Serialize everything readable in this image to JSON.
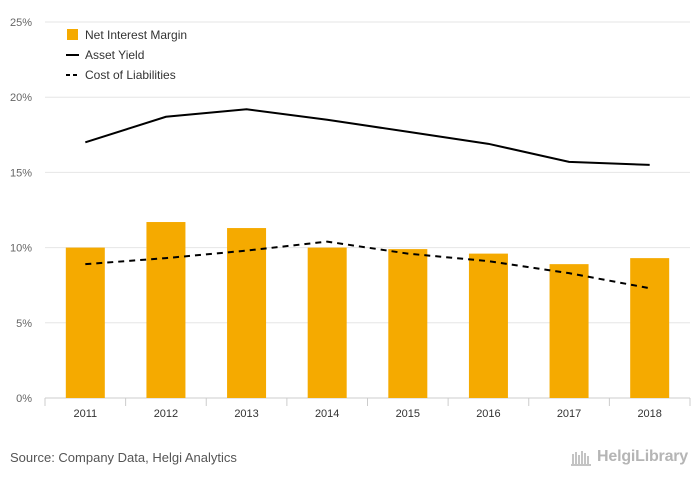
{
  "chart_data": {
    "type": "bar",
    "categories": [
      "2011",
      "2012",
      "2013",
      "2014",
      "2015",
      "2016",
      "2017",
      "2018"
    ],
    "series": [
      {
        "name": "Net Interest Margin",
        "kind": "bar",
        "color": "#f5aa00",
        "values": [
          10.0,
          11.7,
          11.3,
          10.0,
          9.9,
          9.6,
          8.9,
          9.3
        ]
      },
      {
        "name": "Asset Yield",
        "kind": "line",
        "color": "#000000",
        "dash": "solid",
        "values": [
          17.0,
          18.7,
          19.2,
          18.5,
          17.7,
          16.9,
          15.7,
          15.5
        ]
      },
      {
        "name": "Cost of Liabilities",
        "kind": "line",
        "color": "#000000",
        "dash": "dashed",
        "values": [
          8.9,
          9.3,
          9.8,
          10.4,
          9.6,
          9.1,
          8.3,
          7.3
        ]
      }
    ],
    "ylim": [
      0,
      25
    ],
    "yticks": [
      "0%",
      "5%",
      "10%",
      "15%",
      "20%",
      "25%"
    ],
    "ytick_values": [
      0,
      5,
      10,
      15,
      20,
      25
    ],
    "grid": true,
    "legend_position": "top-left"
  },
  "footer": {
    "source": "Source: Company Data, Helgi Analytics",
    "brand": "HelgiLibrary"
  },
  "colors": {
    "bar": "#f5aa00",
    "line": "#000000",
    "grid": "#e6e6e6",
    "axis_text": "#666666"
  }
}
